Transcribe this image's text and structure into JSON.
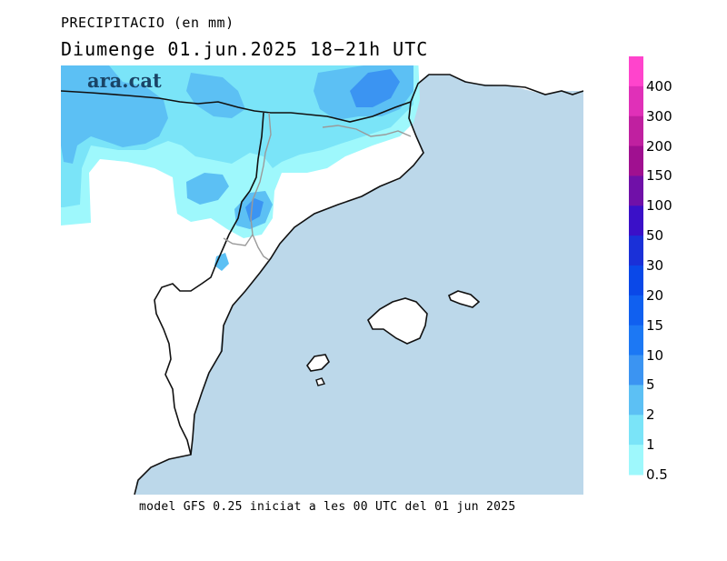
{
  "header": {
    "title": "PRECIPITACIO (en mm)",
    "subtitle": "Diumenge  01.jun.2025  18−21h  UTC"
  },
  "logo": {
    "text": "ara.cat"
  },
  "footer": {
    "text": "model  GFS  0.25  iniciat  a  les  00  UTC  del  01  jun  2025"
  },
  "legend": {
    "levels": [
      {
        "label": "400",
        "color": "#ff44cc"
      },
      {
        "label": "300",
        "color": "#e030b8"
      },
      {
        "label": "200",
        "color": "#c020a0"
      },
      {
        "label": "150",
        "color": "#a01090"
      },
      {
        "label": "100",
        "color": "#7010a8"
      },
      {
        "label": "50",
        "color": "#3a10c8"
      },
      {
        "label": "30",
        "color": "#1a30d8"
      },
      {
        "label": "20",
        "color": "#0a48e8"
      },
      {
        "label": "15",
        "color": "#1060f0"
      },
      {
        "label": "10",
        "color": "#1c78f4"
      },
      {
        "label": "5",
        "color": "#3b94f2"
      },
      {
        "label": "2",
        "color": "#5cc0f4"
      },
      {
        "label": "1",
        "color": "#7ae4f8"
      },
      {
        "label": "0.5",
        "color": "#9ef8fc"
      }
    ]
  },
  "colors": {
    "sea": "#bcd8ea",
    "land": "#ffffff",
    "coast": "#111111",
    "border": "#9a9a9a"
  }
}
